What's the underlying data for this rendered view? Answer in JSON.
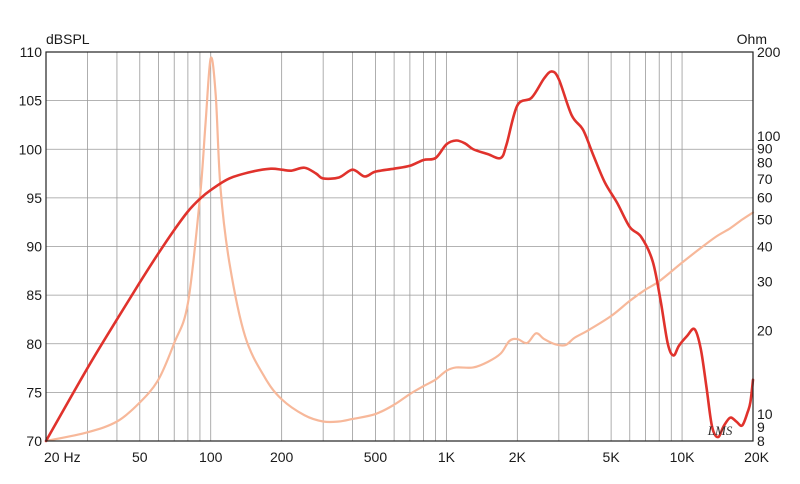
{
  "chart_data": {
    "type": "line",
    "title": "",
    "xlabel": "",
    "x_scale": "log",
    "xlim": [
      20,
      20000
    ],
    "x_ticks": [
      {
        "value": 20,
        "label": "20  Hz"
      },
      {
        "value": 50,
        "label": "50"
      },
      {
        "value": 100,
        "label": "100"
      },
      {
        "value": 200,
        "label": "200"
      },
      {
        "value": 500,
        "label": "500"
      },
      {
        "value": 1000,
        "label": "1K"
      },
      {
        "value": 2000,
        "label": "2K"
      },
      {
        "value": 5000,
        "label": "5K"
      },
      {
        "value": 10000,
        "label": "10K"
      },
      {
        "value": 20000,
        "label": "20K"
      }
    ],
    "y_left": {
      "unit": "dBSPL",
      "ylim": [
        70,
        110
      ],
      "ticks": [
        70,
        75,
        80,
        85,
        90,
        95,
        100,
        105,
        110
      ]
    },
    "y_right": {
      "unit": "Ohm",
      "scale": "log",
      "ylim": [
        8,
        200
      ],
      "ticks": [
        8,
        9,
        10,
        20,
        30,
        40,
        50,
        60,
        70,
        80,
        90,
        100,
        200
      ]
    },
    "grid": true,
    "legend": "none",
    "series": [
      {
        "axis": "left",
        "color": "#e0322c",
        "points": [
          [
            20,
            70.0
          ],
          [
            30,
            77.5
          ],
          [
            40,
            82.5
          ],
          [
            50,
            86.3
          ],
          [
            60,
            89.3
          ],
          [
            70,
            91.7
          ],
          [
            80,
            93.6
          ],
          [
            90,
            94.9
          ],
          [
            100,
            95.8
          ],
          [
            120,
            97.0
          ],
          [
            150,
            97.7
          ],
          [
            180,
            98.0
          ],
          [
            200,
            97.9
          ],
          [
            220,
            97.8
          ],
          [
            250,
            98.1
          ],
          [
            280,
            97.5
          ],
          [
            300,
            97.0
          ],
          [
            350,
            97.1
          ],
          [
            400,
            97.9
          ],
          [
            450,
            97.2
          ],
          [
            500,
            97.7
          ],
          [
            600,
            98.0
          ],
          [
            700,
            98.3
          ],
          [
            800,
            98.9
          ],
          [
            900,
            99.1
          ],
          [
            1000,
            100.5
          ],
          [
            1100,
            100.9
          ],
          [
            1200,
            100.6
          ],
          [
            1300,
            100.0
          ],
          [
            1500,
            99.5
          ],
          [
            1700,
            99.1
          ],
          [
            1800,
            100.5
          ],
          [
            2000,
            104.5
          ],
          [
            2300,
            105.3
          ],
          [
            2600,
            107.3
          ],
          [
            2800,
            108.0
          ],
          [
            3000,
            107.2
          ],
          [
            3400,
            103.5
          ],
          [
            3800,
            102.0
          ],
          [
            4200,
            99.4
          ],
          [
            4700,
            96.6
          ],
          [
            5300,
            94.5
          ],
          [
            6000,
            92.0
          ],
          [
            6700,
            91.0
          ],
          [
            7500,
            88.5
          ],
          [
            8100,
            84.5
          ],
          [
            8700,
            80.0
          ],
          [
            9200,
            78.8
          ],
          [
            9700,
            79.8
          ],
          [
            10500,
            80.8
          ],
          [
            11300,
            81.5
          ],
          [
            12000,
            79.5
          ],
          [
            12700,
            75.5
          ],
          [
            13400,
            71.5
          ],
          [
            14200,
            70.4
          ],
          [
            15000,
            71.5
          ],
          [
            16000,
            72.4
          ],
          [
            17000,
            72.0
          ],
          [
            18000,
            71.6
          ],
          [
            19000,
            73.0
          ],
          [
            19500,
            74.0
          ],
          [
            20000,
            76.3
          ]
        ]
      },
      {
        "axis": "right",
        "color": "#f7b89a",
        "points": [
          [
            20,
            8.0
          ],
          [
            30,
            8.6
          ],
          [
            40,
            9.4
          ],
          [
            50,
            11.0
          ],
          [
            60,
            13.3
          ],
          [
            70,
            18.0
          ],
          [
            80,
            25.0
          ],
          [
            90,
            60.0
          ],
          [
            95,
            110.0
          ],
          [
            100,
            190.0
          ],
          [
            105,
            140.0
          ],
          [
            110,
            65.0
          ],
          [
            120,
            35.0
          ],
          [
            140,
            19.0
          ],
          [
            170,
            13.5
          ],
          [
            200,
            11.3
          ],
          [
            250,
            9.9
          ],
          [
            300,
            9.4
          ],
          [
            350,
            9.4
          ],
          [
            400,
            9.6
          ],
          [
            500,
            10.0
          ],
          [
            600,
            10.8
          ],
          [
            700,
            11.8
          ],
          [
            800,
            12.6
          ],
          [
            900,
            13.3
          ],
          [
            1000,
            14.3
          ],
          [
            1100,
            14.7
          ],
          [
            1300,
            14.7
          ],
          [
            1500,
            15.4
          ],
          [
            1700,
            16.5
          ],
          [
            1850,
            18.3
          ],
          [
            2000,
            18.6
          ],
          [
            2200,
            18.0
          ],
          [
            2400,
            19.5
          ],
          [
            2600,
            18.6
          ],
          [
            2900,
            17.8
          ],
          [
            3200,
            17.7
          ],
          [
            3500,
            18.8
          ],
          [
            4000,
            20.0
          ],
          [
            5000,
            22.5
          ],
          [
            6000,
            25.5
          ],
          [
            7000,
            28.0
          ],
          [
            8000,
            30.0
          ],
          [
            10000,
            35.0
          ],
          [
            12000,
            39.5
          ],
          [
            14000,
            43.5
          ],
          [
            16000,
            46.5
          ],
          [
            18000,
            50.0
          ],
          [
            20000,
            53.0
          ]
        ]
      }
    ]
  },
  "logo_text": "LMS"
}
